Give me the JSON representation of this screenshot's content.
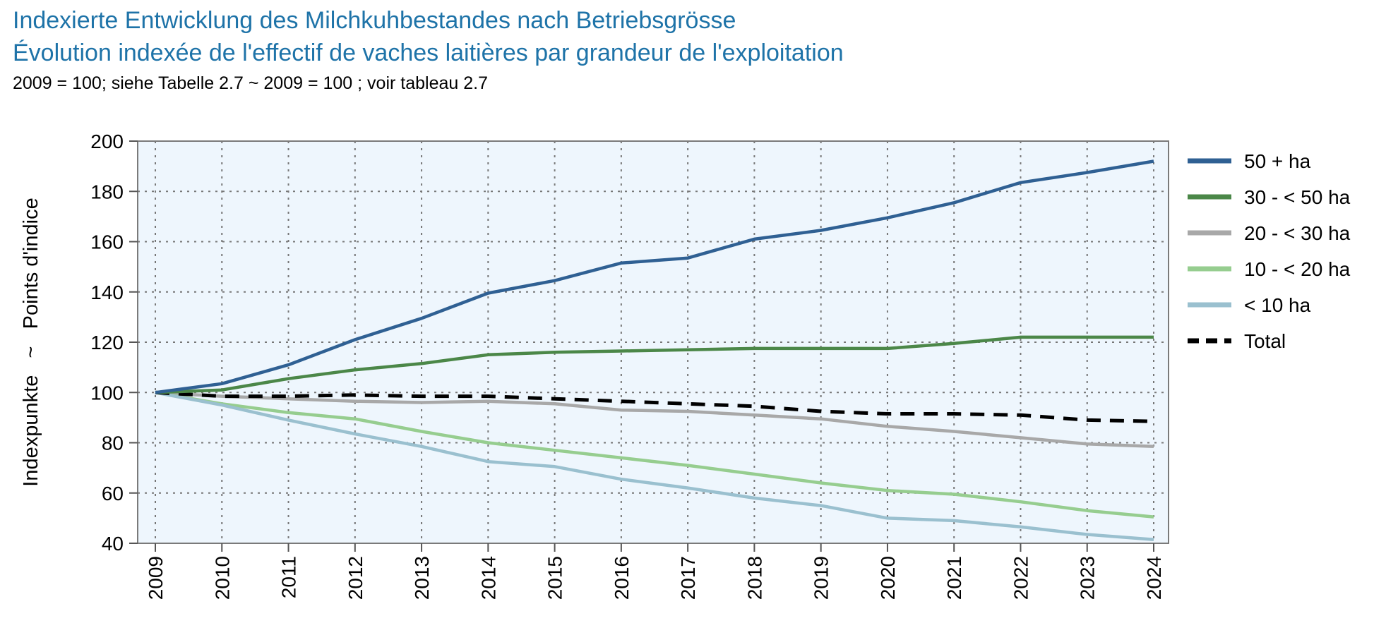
{
  "chart_data": {
    "type": "line",
    "title": "Indexierte Entwicklung des Milchkuhbestandes nach Betriebsgrösse",
    "subtitle": "Évolution indexée de l'effectif de vaches laitières par grandeur de l'exploitation",
    "note": "2009 = 100; siehe Tabelle 2.7   ~   2009 = 100 ; voir tableau 2.7",
    "ylabel": "Indexpunkte   ~   Points d'indice",
    "xlabel": "",
    "x": [
      "2009",
      "2010",
      "2011",
      "2012",
      "2013",
      "2014",
      "2015",
      "2016",
      "2017",
      "2018",
      "2019",
      "2020",
      "2021",
      "2022",
      "2023",
      "2024"
    ],
    "ylim": [
      40,
      200
    ],
    "yticks": [
      "40",
      "60",
      "80",
      "100",
      "120",
      "140",
      "160",
      "180",
      "200"
    ],
    "grid": true,
    "legend_position": "right",
    "series": [
      {
        "name": "50 + ha",
        "color": "#2f6093",
        "dash": false,
        "values": [
          100,
          103.5,
          111,
          121,
          129.5,
          139.5,
          144.5,
          151.5,
          153.5,
          161,
          164.5,
          169.5,
          175.5,
          183.5,
          187.5,
          192
        ]
      },
      {
        "name": "30 - < 50 ha",
        "color": "#4b8748",
        "dash": false,
        "values": [
          100,
          101,
          105.5,
          109,
          111.5,
          115,
          116,
          116.5,
          117,
          117.5,
          117.5,
          117.5,
          119.5,
          122,
          122,
          122
        ]
      },
      {
        "name": "20 - < 30 ha",
        "color": "#a8a8a8",
        "dash": false,
        "values": [
          100,
          98.5,
          97.5,
          96.5,
          96,
          96.5,
          95.5,
          93,
          92.5,
          91,
          89.5,
          86.5,
          84.5,
          82,
          79.5,
          78.5
        ]
      },
      {
        "name": "10 - < 20 ha",
        "color": "#96cd8f",
        "dash": false,
        "values": [
          100,
          95.5,
          92,
          89.5,
          84.5,
          80,
          77,
          74,
          71,
          67.5,
          64,
          61,
          59.5,
          56.5,
          53,
          50.5
        ]
      },
      {
        "name": "< 10 ha",
        "color": "#9ac0cf",
        "dash": false,
        "values": [
          100,
          95,
          89,
          83.5,
          78.5,
          72.5,
          70.5,
          65.5,
          62,
          58,
          55,
          50,
          49,
          46.5,
          43.5,
          41.5
        ]
      },
      {
        "name": "Total",
        "color": "#000000",
        "dash": true,
        "values": [
          100,
          98.5,
          98.5,
          99,
          98.5,
          98.5,
          97.5,
          96.5,
          95.5,
          94.5,
          92.5,
          91.5,
          91.5,
          91,
          89,
          88.5
        ]
      }
    ]
  }
}
